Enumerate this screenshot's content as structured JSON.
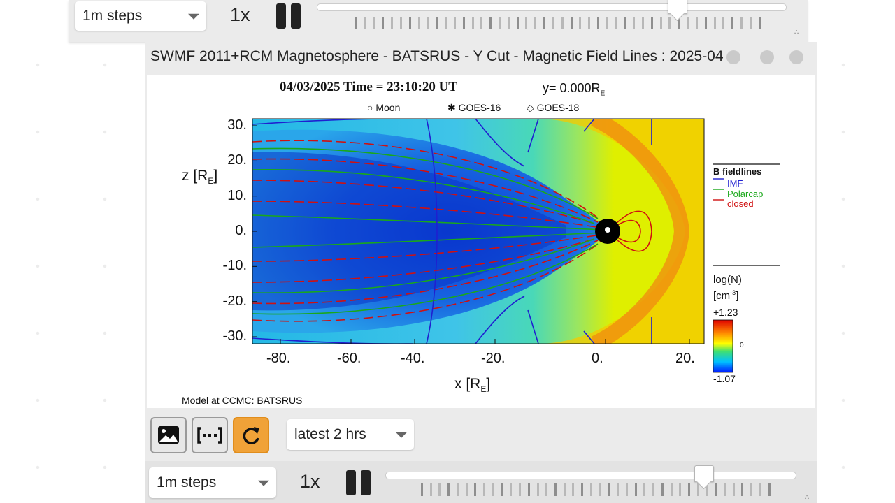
{
  "top_controls": {
    "step_select": {
      "value": "1m steps"
    },
    "speed": "1x",
    "slider_position": 0.77
  },
  "panel": {
    "title": "SWMF 2011+RCM Magnetosphere - BATSRUS - Y Cut - Magnetic Field Lines : 2025-04"
  },
  "plot": {
    "header_date": "04/03/2025",
    "header_time": "Time = 23:10:20 UT",
    "header_cut": "y= 0.000R",
    "header_cut_sub": "E",
    "markers": [
      "Moon",
      "GOES-16",
      "GOES-18"
    ],
    "zlabel": "z [R",
    "zlabel_sub": "E",
    "xlabel": "x [R",
    "xlabel_sub": "E",
    "yticks": [
      "30.",
      "20.",
      "10.",
      "0.",
      "-10.",
      "-20.",
      "-30."
    ],
    "xticks": [
      "-80.",
      "-60.",
      "-40.",
      "-20.",
      "0.",
      "20."
    ],
    "legend_title": "B fieldlines",
    "legend": [
      {
        "label": "IMF",
        "color": "#1f1fd0"
      },
      {
        "label": "Polarcap",
        "color": "#1aa81a"
      },
      {
        "label": "closed",
        "color": "#d01010"
      }
    ],
    "colorbar_title": "log(N)",
    "colorbar_unit": "[cm",
    "colorbar_unit_sup": "-3",
    "colorbar_unit_close": "]",
    "colorbar_max": "+1.23",
    "colorbar_mid": "0",
    "colorbar_min": "-1.07",
    "credit": "Model at CCMC: BATSRUS"
  },
  "tools": {
    "range_select": {
      "value": "latest 2 hrs"
    }
  },
  "bottom_controls": {
    "step_select": {
      "value": "1m steps"
    },
    "speed": "1x",
    "slider_position": 0.78
  },
  "colors": {
    "panel_bg": "#ebebeb",
    "accent_orange": "#f0a238",
    "plot_yellow": "#dfef00"
  }
}
